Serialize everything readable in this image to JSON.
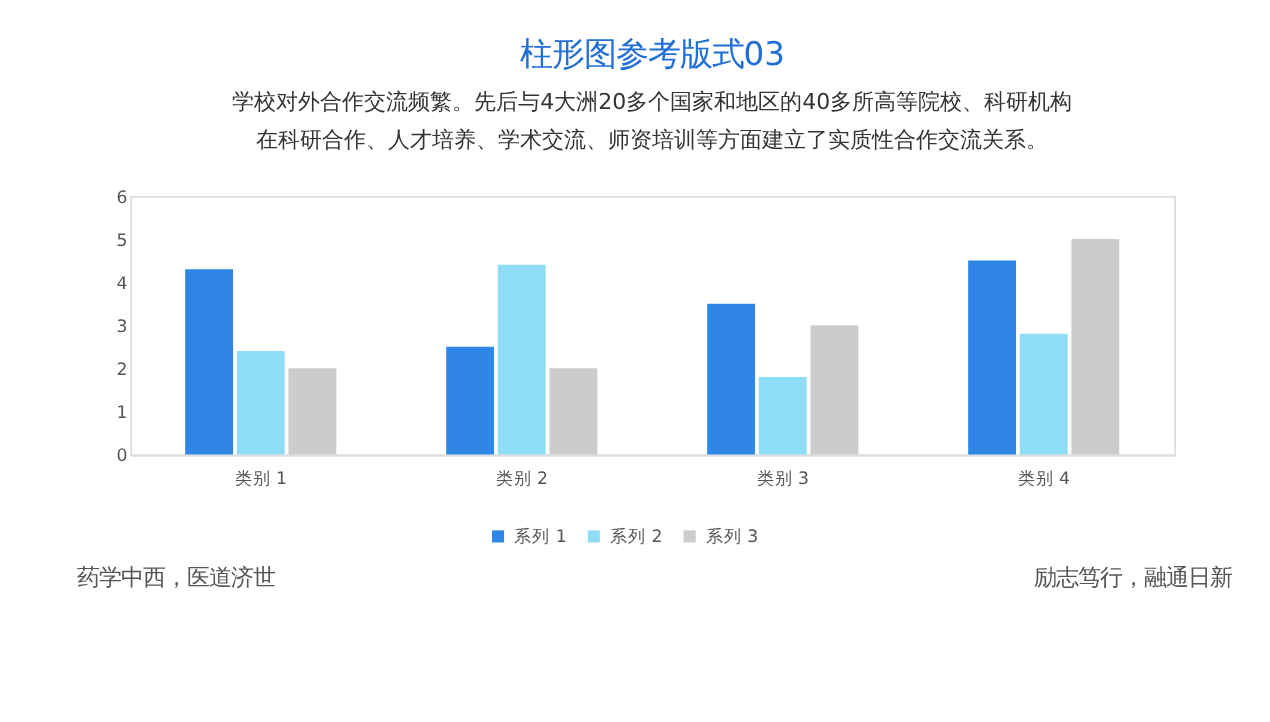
{
  "chart_data": {
    "type": "bar",
    "title": "柱形图参考版式03",
    "subtitle": "学校对外合作交流频繁。先后与4大洲20多个国家和地区的40多所高等院校、科研机构在科研合作、人才培养、学术交流、师资培训等方面建立了实质性合作交流关系。",
    "categories": [
      "类别 1",
      "类别 2",
      "类别 3",
      "类别 4"
    ],
    "series": [
      {
        "name": "系列 1",
        "color": "#2f86e6",
        "values": [
          4.3,
          2.5,
          3.5,
          4.5
        ]
      },
      {
        "name": "系列 2",
        "color": "#8fdcf7",
        "values": [
          2.4,
          4.4,
          1.8,
          2.8
        ]
      },
      {
        "name": "系列 3",
        "color": "#cccccc",
        "values": [
          2,
          2,
          3,
          5
        ]
      }
    ],
    "ylim": [
      0,
      6
    ],
    "yticks": [
      0,
      1,
      2,
      3,
      4,
      5,
      6
    ],
    "grid": false,
    "legend": "bottom",
    "annotations": [
      "药学中西，医道济世",
      "励志笃行，融通日新"
    ]
  }
}
